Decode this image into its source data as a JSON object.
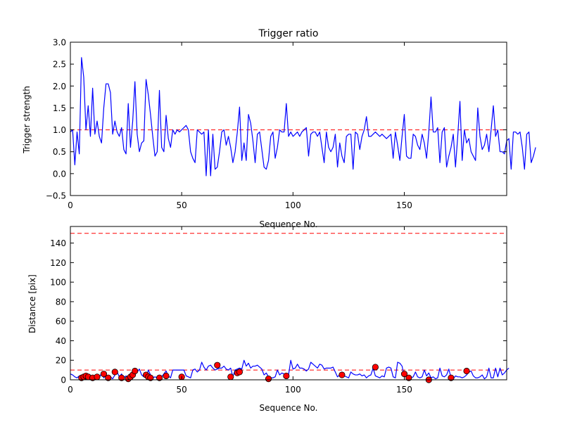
{
  "chart_data": [
    {
      "type": "line",
      "title": "Trigger ratio",
      "xlabel": "Sequence No.",
      "ylabel": "Trigger strength",
      "xlim": [
        0,
        196
      ],
      "ylim": [
        -0.5,
        3.0
      ],
      "xticks": [
        "0",
        "50",
        "100",
        "150"
      ],
      "yticks": [
        "−0.5",
        "0.0",
        "0.5",
        "1.0",
        "1.5",
        "2.0",
        "2.5",
        "3.0"
      ],
      "grid": false,
      "colors": {
        "series": "#0000ff",
        "reference": "#ff0000"
      },
      "reference_line": {
        "y": 1.0,
        "style": "dashed"
      },
      "series": [
        {
          "values": [
            0.95,
            1.0,
            0.2,
            0.95,
            0.45,
            2.65,
            2.2,
            1.0,
            1.55,
            0.85,
            1.95,
            0.9,
            1.2,
            0.85,
            0.7,
            1.5,
            2.05,
            2.05,
            1.85,
            0.9,
            1.2,
            0.95,
            0.85,
            1.05,
            0.55,
            0.45,
            1.6,
            0.6,
            1.2,
            2.1,
            0.9,
            0.5,
            0.7,
            0.75,
            2.15,
            1.8,
            1.35,
            0.85,
            0.4,
            0.5,
            1.9,
            0.6,
            0.5,
            1.33,
            0.8,
            0.6,
            1.0,
            0.9,
            1.0,
            0.95,
            1.0,
            1.05,
            1.1,
            1.0,
            0.5,
            0.35,
            0.25,
            1.0,
            0.95,
            0.9,
            0.95,
            -0.05,
            1.0,
            -0.05,
            0.9,
            0.1,
            0.15,
            0.5,
            0.95,
            1.0,
            0.65,
            0.85,
            0.6,
            0.25,
            0.5,
            0.95,
            1.52,
            0.3,
            0.7,
            0.3,
            1.35,
            1.15,
            0.75,
            0.25,
            0.9,
            0.95,
            0.55,
            0.15,
            0.1,
            0.3,
            0.85,
            0.95,
            0.35,
            0.6,
            1.0,
            0.95,
            0.95,
            1.6,
            0.85,
            0.95,
            0.85,
            0.9,
            0.95,
            0.85,
            0.95,
            1.0,
            1.05,
            0.4,
            0.9,
            0.95,
            0.95,
            0.85,
            0.95,
            0.6,
            0.25,
            0.95,
            0.6,
            0.5,
            0.6,
            0.9,
            0.15,
            0.7,
            0.4,
            0.25,
            0.85,
            0.9,
            0.9,
            0.1,
            0.95,
            0.9,
            0.55,
            0.85,
            1.0,
            1.3,
            0.85,
            0.85,
            0.9,
            0.95,
            0.9,
            0.85,
            0.9,
            0.85,
            0.8,
            0.85,
            0.9,
            0.35,
            0.95,
            0.65,
            0.3,
            0.85,
            1.35,
            0.4,
            0.35,
            0.35,
            0.9,
            0.85,
            0.65,
            0.55,
            0.9,
            0.7,
            0.35,
            0.95,
            1.75,
            0.95,
            0.95,
            1.05,
            0.25,
            0.95,
            1.05,
            0.15,
            0.4,
            0.6,
            0.9,
            0.15,
            0.85,
            1.65,
            0.3,
            1.0,
            0.7,
            0.8,
            0.5,
            0.4,
            0.3,
            1.5,
            0.85,
            0.55,
            0.65,
            0.9,
            0.5,
            1.0,
            1.55,
            0.85,
            1.0,
            0.5,
            0.5,
            0.45,
            0.75,
            0.8,
            0.1,
            0.95,
            0.95,
            0.9,
            0.95,
            0.6,
            0.1,
            0.9,
            0.95,
            0.25,
            0.4,
            0.6
          ]
        }
      ]
    },
    {
      "type": "line",
      "title": "",
      "xlabel": "Sequence No.",
      "ylabel": "Distance [pix]",
      "xlim": [
        0,
        196
      ],
      "ylim": [
        0,
        157
      ],
      "xticks": [
        "0",
        "50",
        "100",
        "150"
      ],
      "yticks": [
        "0",
        "20",
        "40",
        "60",
        "80",
        "100",
        "120",
        "140"
      ],
      "grid": false,
      "colors": {
        "series": "#0000ff",
        "reference": "#ff0000",
        "markers": "#ff0000"
      },
      "reference_lines": [
        {
          "y": 150,
          "style": "dashed"
        },
        {
          "y": 10,
          "style": "dashed"
        }
      ],
      "series": [
        {
          "values": [
            6,
            5,
            3,
            2,
            4,
            2,
            1,
            2,
            1,
            3,
            2,
            3,
            1,
            2,
            7,
            2,
            5,
            1,
            3,
            1,
            5,
            8,
            3,
            6,
            2,
            4,
            1,
            2,
            3,
            7,
            8,
            11,
            5,
            3,
            2,
            10,
            5,
            2,
            3,
            2,
            4,
            3,
            6,
            9,
            4,
            2,
            10,
            10,
            10,
            10,
            10,
            10,
            4,
            3,
            2,
            10,
            11,
            8,
            10,
            18,
            13,
            10,
            14,
            15,
            12,
            10,
            11,
            12,
            12,
            14,
            11,
            10,
            12,
            3,
            10,
            11,
            12,
            11,
            20,
            14,
            17,
            12,
            14,
            14,
            15,
            13,
            11,
            5,
            7,
            3,
            2,
            2,
            3,
            10,
            5,
            7,
            6,
            4,
            5,
            20,
            11,
            12,
            16,
            12,
            12,
            11,
            9,
            11,
            18,
            16,
            14,
            12,
            16,
            15,
            11,
            12,
            12,
            12,
            13,
            8,
            3,
            5,
            8,
            4,
            3,
            2,
            8,
            6,
            5,
            5,
            6,
            4,
            5,
            2,
            4,
            5,
            12,
            4,
            3,
            2,
            4,
            3,
            12,
            13,
            12,
            3,
            2,
            18,
            17,
            14,
            3,
            4,
            2,
            2,
            3,
            8,
            3,
            2,
            3,
            10,
            4,
            7,
            2,
            3,
            1,
            2,
            12,
            4,
            3,
            5,
            11,
            2,
            1,
            4,
            3,
            3,
            2,
            3,
            5,
            8,
            9,
            4,
            2,
            2,
            3,
            5,
            1,
            3,
            12,
            2,
            2,
            12,
            3,
            12,
            5,
            7,
            10,
            12
          ]
        }
      ],
      "markers": {
        "x": [
          5,
          6,
          7,
          8,
          10,
          12,
          15,
          17,
          20,
          23,
          26,
          27,
          28,
          29,
          34,
          35,
          36,
          40,
          43,
          50,
          66,
          72,
          75,
          76,
          89,
          97,
          122,
          137,
          150,
          152,
          161,
          171,
          178
        ],
        "y": [
          2,
          3,
          4,
          3,
          2,
          3,
          6,
          2,
          8,
          2,
          1,
          3,
          5,
          9,
          5,
          3,
          2,
          2,
          4,
          3,
          15,
          3,
          7,
          8,
          1,
          4,
          5,
          13,
          6,
          2,
          0,
          2,
          9
        ]
      }
    }
  ]
}
